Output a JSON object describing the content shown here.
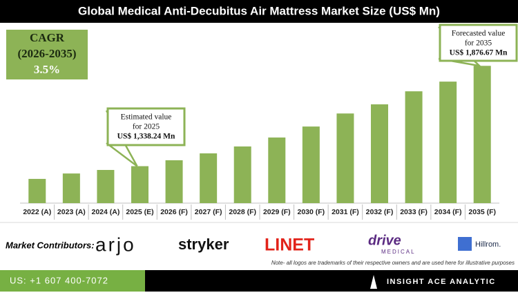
{
  "chart_data": {
    "type": "bar",
    "title": "Global Medical Anti-Decubitus Air Mattress Market Size (US$ Mn)",
    "categories": [
      "2022 (A)",
      "2023 (A)",
      "2024 (A)",
      "2025 (E)",
      "2026 (F)",
      "2027 (F)",
      "2028 (F)",
      "2029 (F)",
      "2030 (F)",
      "2031 (F)",
      "2032 (F)",
      "2033 (F)",
      "2034 (F)",
      "2035 (F)"
    ],
    "values": [
      1270,
      1299,
      1318,
      1338.24,
      1370,
      1407,
      1444,
      1492,
      1551,
      1621,
      1670,
      1740,
      1792,
      1876.67
    ],
    "value_labels": [
      null,
      null,
      null,
      "US$ 1,338.24 Mn",
      null,
      null,
      null,
      null,
      null,
      null,
      null,
      null,
      null,
      "US$ 1,876.67 Mn"
    ],
    "callouts": [
      [
        "Estimated value",
        "for 2025"
      ],
      [
        "Forecasted value",
        "for 2035"
      ]
    ],
    "color": "#8db356",
    "ylim": [
      1140,
      1900
    ]
  },
  "cagr": {
    "label": "CAGR",
    "period": "(2026-2035)",
    "value": "3.5%"
  },
  "contributors": {
    "label": "Market Contributors:",
    "logos": [
      "arjo",
      "stryker",
      "LINET",
      "drive",
      "MEDICAL",
      "Hillrom."
    ],
    "note": "Note- all logos are trademarks of their respective owners and are used here for illustrative purposes"
  },
  "footer": {
    "phone": "US: +1 607 400-7072",
    "brand": "INSIGHT ACE ANALYTIC"
  }
}
